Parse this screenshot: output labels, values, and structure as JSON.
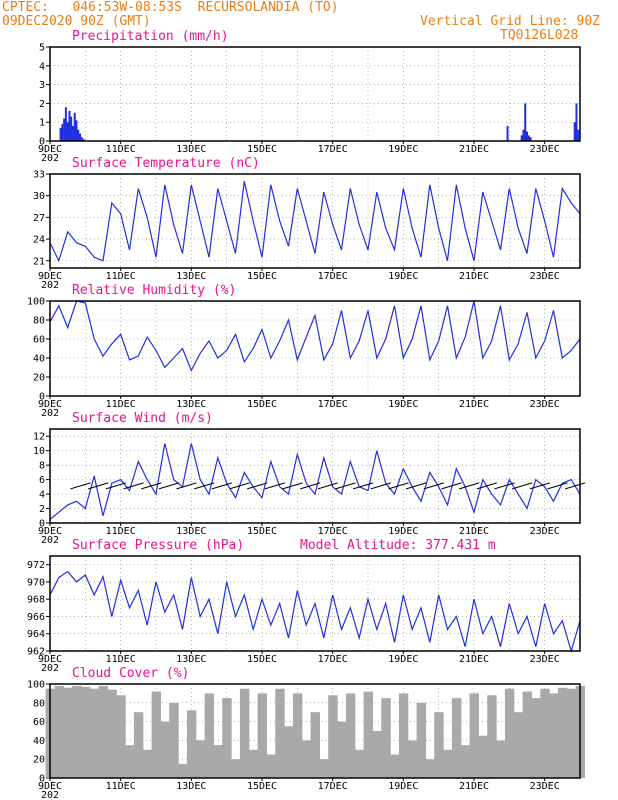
{
  "header": {
    "line1_left": "CPTEC:   046:53W-08:53S  RECURSOLANDIA (TO)",
    "line2_left": "09DEC2020 90Z (GMT)",
    "line2_right": "Vertical Grid Line: 90Z",
    "line3_right": "TQ0126L028"
  },
  "colors": {
    "header": "#ee7d14",
    "title": "#e8148e",
    "series": "#2030e0",
    "cloud": "#a9a9a9",
    "grid": "#888888"
  },
  "x_axis": {
    "labels": [
      "9DEC",
      "11DEC",
      "13DEC",
      "15DEC",
      "17DEC",
      "19DEC",
      "21DEC",
      "23DEC"
    ],
    "label_days": [
      0,
      2,
      4,
      6,
      8,
      10,
      12,
      14
    ],
    "range_days": [
      0,
      15
    ],
    "year_stub": "202"
  },
  "chart_data": [
    {
      "type": "bar",
      "title": "Precipitation (mm/h)",
      "ylim": [
        0,
        5
      ],
      "yticks": [
        "0",
        "1",
        "2",
        "3",
        "4",
        "5"
      ],
      "x": [
        0.3,
        0.35,
        0.4,
        0.45,
        0.5,
        0.55,
        0.6,
        0.65,
        0.7,
        0.75,
        0.8,
        0.85,
        0.9,
        0.95,
        12.95,
        13.35,
        13.4,
        13.45,
        13.5,
        13.55,
        13.6,
        14.85,
        14.9,
        14.95
      ],
      "values": [
        0.7,
        0.9,
        1.2,
        1.8,
        1.0,
        1.6,
        1.3,
        0.8,
        1.5,
        1.1,
        0.6,
        0.4,
        0.2,
        0.1,
        0.8,
        0.3,
        0.6,
        2.0,
        0.5,
        0.3,
        0.2,
        1.0,
        2.0,
        0.6
      ]
    },
    {
      "type": "line",
      "title": "Surface Temperature (nC)",
      "ylim": [
        20,
        33
      ],
      "yticks": [
        "21",
        "24",
        "27",
        "30",
        "33"
      ],
      "x": [
        0,
        0.25,
        0.5,
        0.75,
        1,
        1.25,
        1.5,
        1.75,
        2,
        2.25,
        2.5,
        2.75,
        3,
        3.25,
        3.5,
        3.75,
        4,
        4.25,
        4.5,
        4.75,
        5,
        5.25,
        5.5,
        5.75,
        6,
        6.25,
        6.5,
        6.75,
        7,
        7.25,
        7.5,
        7.75,
        8,
        8.25,
        8.5,
        8.75,
        9,
        9.25,
        9.5,
        9.75,
        10,
        10.25,
        10.5,
        10.75,
        11,
        11.25,
        11.5,
        11.75,
        12,
        12.25,
        12.5,
        12.75,
        13,
        13.25,
        13.5,
        13.75,
        14,
        14.25,
        14.5,
        14.75,
        15
      ],
      "values": [
        23.5,
        21.0,
        25.0,
        23.5,
        23.0,
        21.5,
        21.0,
        29.0,
        27.5,
        22.5,
        31.0,
        27.0,
        21.5,
        31.5,
        26.0,
        22.0,
        31.5,
        26.5,
        21.5,
        31.0,
        26.5,
        22.0,
        32.0,
        26.5,
        21.5,
        31.5,
        26.5,
        23.0,
        31.0,
        26.5,
        22.0,
        30.5,
        26.0,
        22.5,
        31.0,
        26.0,
        22.5,
        30.5,
        25.5,
        22.5,
        31.0,
        25.5,
        21.5,
        31.5,
        25.5,
        21.0,
        31.5,
        25.5,
        21.0,
        30.5,
        26.5,
        22.5,
        31.0,
        25.5,
        22.0,
        31.0,
        26.5,
        21.5,
        31.0,
        29.0,
        27.5
      ]
    },
    {
      "type": "line",
      "title": "Relative Humidity (%)",
      "ylim": [
        0,
        100
      ],
      "yticks": [
        "0",
        "20",
        "40",
        "60",
        "80",
        "100"
      ],
      "x": [
        0,
        0.25,
        0.5,
        0.75,
        1,
        1.25,
        1.5,
        1.75,
        2,
        2.25,
        2.5,
        2.75,
        3,
        3.25,
        3.5,
        3.75,
        4,
        4.25,
        4.5,
        4.75,
        5,
        5.25,
        5.5,
        5.75,
        6,
        6.25,
        6.5,
        6.75,
        7,
        7.25,
        7.5,
        7.75,
        8,
        8.25,
        8.5,
        8.75,
        9,
        9.25,
        9.5,
        9.75,
        10,
        10.25,
        10.5,
        10.75,
        11,
        11.25,
        11.5,
        11.75,
        12,
        12.25,
        12.5,
        12.75,
        13,
        13.25,
        13.5,
        13.75,
        14,
        14.25,
        14.5,
        14.75,
        15
      ],
      "values": [
        78,
        95,
        72,
        100,
        98,
        60,
        42,
        55,
        65,
        38,
        42,
        62,
        48,
        30,
        40,
        50,
        27,
        45,
        58,
        40,
        48,
        65,
        36,
        50,
        70,
        40,
        58,
        80,
        38,
        62,
        85,
        38,
        55,
        90,
        40,
        58,
        90,
        40,
        60,
        95,
        40,
        60,
        95,
        38,
        58,
        95,
        40,
        62,
        100,
        40,
        58,
        95,
        38,
        55,
        88,
        40,
        58,
        90,
        40,
        48,
        60
      ]
    },
    {
      "type": "line",
      "title": "Surface Wind (m/s)",
      "ylim": [
        0,
        13
      ],
      "yticks": [
        "0",
        "2",
        "4",
        "6",
        "8",
        "10",
        "12"
      ],
      "x": [
        0,
        0.25,
        0.5,
        0.75,
        1,
        1.25,
        1.5,
        1.75,
        2,
        2.25,
        2.5,
        2.75,
        3,
        3.25,
        3.5,
        3.75,
        4,
        4.25,
        4.5,
        4.75,
        5,
        5.25,
        5.5,
        5.75,
        6,
        6.25,
        6.5,
        6.75,
        7,
        7.25,
        7.5,
        7.75,
        8,
        8.25,
        8.5,
        8.75,
        9,
        9.25,
        9.5,
        9.75,
        10,
        10.25,
        10.5,
        10.75,
        11,
        11.25,
        11.5,
        11.75,
        12,
        12.25,
        12.5,
        12.75,
        13,
        13.25,
        13.5,
        13.75,
        14,
        14.25,
        14.5,
        14.75,
        15
      ],
      "values": [
        0.5,
        1.5,
        2.5,
        3.0,
        2.0,
        6.5,
        1.0,
        5.5,
        6.0,
        4.5,
        8.5,
        6.0,
        4.0,
        11.0,
        6.0,
        5.0,
        11.0,
        6.0,
        4.0,
        9.0,
        5.5,
        3.5,
        7.0,
        5.0,
        3.5,
        8.5,
        5.0,
        4.0,
        9.5,
        5.5,
        4.0,
        9.0,
        5.0,
        4.0,
        8.5,
        5.0,
        4.5,
        10.0,
        5.5,
        4.0,
        7.5,
        5.0,
        3.0,
        7.0,
        5.0,
        2.5,
        7.5,
        5.0,
        1.5,
        6.0,
        4.0,
        2.5,
        6.0,
        4.0,
        2.0,
        6.0,
        5.0,
        3.0,
        5.5,
        6.0,
        4.0
      ]
    },
    {
      "type": "line",
      "title": "Surface Pressure (hPa)",
      "ylim": [
        962,
        973
      ],
      "yticks": [
        "962",
        "964",
        "966",
        "968",
        "970",
        "972"
      ],
      "x": [
        0,
        0.25,
        0.5,
        0.75,
        1,
        1.25,
        1.5,
        1.75,
        2,
        2.25,
        2.5,
        2.75,
        3,
        3.25,
        3.5,
        3.75,
        4,
        4.25,
        4.5,
        4.75,
        5,
        5.25,
        5.5,
        5.75,
        6,
        6.25,
        6.5,
        6.75,
        7,
        7.25,
        7.5,
        7.75,
        8,
        8.25,
        8.5,
        8.75,
        9,
        9.25,
        9.5,
        9.75,
        10,
        10.25,
        10.5,
        10.75,
        11,
        11.25,
        11.5,
        11.75,
        12,
        12.25,
        12.5,
        12.75,
        13,
        13.25,
        13.5,
        13.75,
        14,
        14.25,
        14.5,
        14.75,
        15
      ],
      "values": [
        968.5,
        970.5,
        971.2,
        970.0,
        970.8,
        968.5,
        970.6,
        966.0,
        970.2,
        967.0,
        969.0,
        965.0,
        970.0,
        966.5,
        968.5,
        964.5,
        970.5,
        966.0,
        968.0,
        964.0,
        970.0,
        966.0,
        968.5,
        964.5,
        968.0,
        965.0,
        967.5,
        963.5,
        969.0,
        965.0,
        967.5,
        963.5,
        968.5,
        964.5,
        967.0,
        963.5,
        968.0,
        964.5,
        967.5,
        963.0,
        968.5,
        964.5,
        967.0,
        963.0,
        968.5,
        964.5,
        966.0,
        962.5,
        968.0,
        964.0,
        966.0,
        962.5,
        967.5,
        964.0,
        966.0,
        962.5,
        967.5,
        964.0,
        965.5,
        962.0,
        965.5
      ]
    },
    {
      "type": "area",
      "title": "Cloud Cover (%)",
      "ylim": [
        0,
        100
      ],
      "yticks": [
        "0",
        "20",
        "40",
        "60",
        "80",
        "100"
      ],
      "x": [
        0,
        0.25,
        0.5,
        0.75,
        1,
        1.25,
        1.5,
        1.75,
        2,
        2.25,
        2.5,
        2.75,
        3,
        3.25,
        3.5,
        3.75,
        4,
        4.25,
        4.5,
        4.75,
        5,
        5.25,
        5.5,
        5.75,
        6,
        6.25,
        6.5,
        6.75,
        7,
        7.25,
        7.5,
        7.75,
        8,
        8.25,
        8.5,
        8.75,
        9,
        9.25,
        9.5,
        9.75,
        10,
        10.25,
        10.5,
        10.75,
        11,
        11.25,
        11.5,
        11.75,
        12,
        12.25,
        12.5,
        12.75,
        13,
        13.25,
        13.5,
        13.75,
        14,
        14.25,
        14.5,
        14.75,
        15
      ],
      "values": [
        95,
        98,
        96,
        98,
        97,
        95,
        98,
        94,
        88,
        35,
        70,
        30,
        92,
        60,
        80,
        15,
        72,
        40,
        90,
        35,
        85,
        20,
        95,
        30,
        90,
        25,
        95,
        55,
        90,
        40,
        70,
        20,
        88,
        60,
        90,
        30,
        92,
        50,
        85,
        25,
        90,
        40,
        80,
        20,
        70,
        30,
        85,
        35,
        90,
        45,
        88,
        40,
        95,
        70,
        92,
        85,
        95,
        90,
        96,
        95,
        98
      ]
    }
  ],
  "annotations": {
    "model_altitude": "Model Altitude: 377.431 m"
  }
}
